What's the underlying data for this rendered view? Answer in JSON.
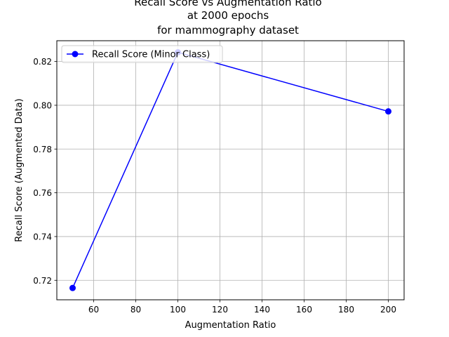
{
  "chart_data": {
    "type": "line",
    "title_lines": [
      "Recall Score vs Augmentation Ratio",
      "at 2000 epochs",
      "for mammography dataset"
    ],
    "xlabel": "Augmentation Ratio",
    "ylabel": "Recall Score (Augmented Data)",
    "xlim": [
      42.5,
      207.5
    ],
    "ylim": [
      0.7111,
      0.8295
    ],
    "xticks": [
      60,
      80,
      100,
      120,
      140,
      160,
      180,
      200
    ],
    "yticks": [
      0.72,
      0.74,
      0.76,
      0.78,
      0.8,
      0.82
    ],
    "ytick_decimals": 2,
    "grid": true,
    "legend_position": "top-left",
    "series": [
      {
        "name": "Recall Score (Minor Class)",
        "color": "#0000ff",
        "marker": "circle",
        "x": [
          50,
          100,
          200
        ],
        "y": [
          0.7165,
          0.8242,
          0.7972
        ]
      }
    ]
  }
}
